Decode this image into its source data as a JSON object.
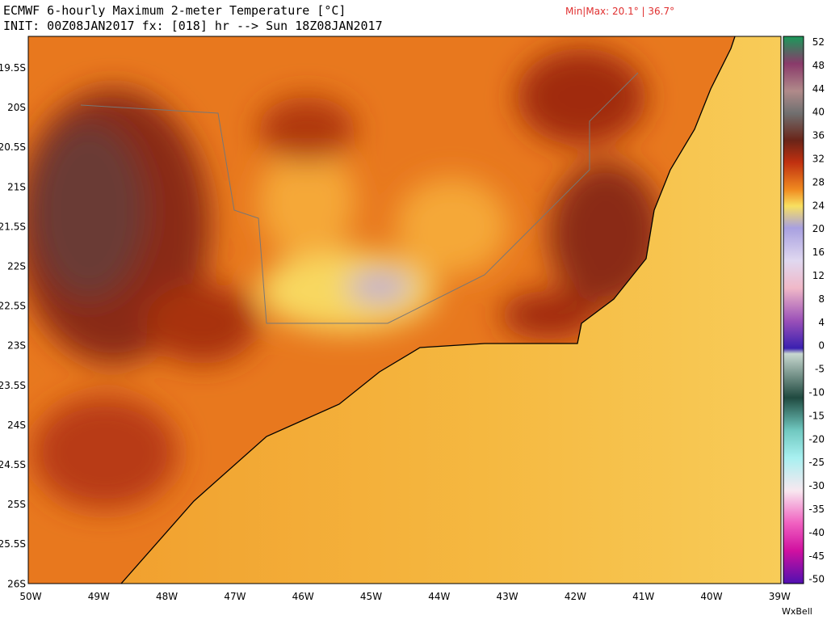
{
  "header": {
    "title": "ECMWF 6-hourly Maximum 2-meter Temperature [°C]",
    "subtitle": "INIT: 00Z08JAN2017 fx: [018] hr --> Sun 18Z08JAN2017",
    "minmax": "Min|Max: 20.1° | 36.7°"
  },
  "map": {
    "lat_labels": [
      "19.5S",
      "20S",
      "20.5S",
      "21S",
      "21.5S",
      "22S",
      "22.5S",
      "23S",
      "23.5S",
      "24S",
      "24.5S",
      "25S",
      "25.5S",
      "26S"
    ],
    "lon_labels": [
      "50W",
      "49W",
      "48W",
      "47W",
      "46W",
      "45W",
      "44W",
      "43W",
      "42W",
      "41W",
      "40W",
      "39W"
    ]
  },
  "colorbar": {
    "labels": [
      "52",
      "48",
      "44",
      "40",
      "36",
      "32",
      "28",
      "24",
      "20",
      "16",
      "12",
      "8",
      "4",
      "0",
      "-5",
      "-10",
      "-15",
      "-20",
      "-25",
      "-30",
      "-35",
      "-40",
      "-45",
      "-50"
    ]
  },
  "footer": {
    "brand": "WxBell"
  }
}
